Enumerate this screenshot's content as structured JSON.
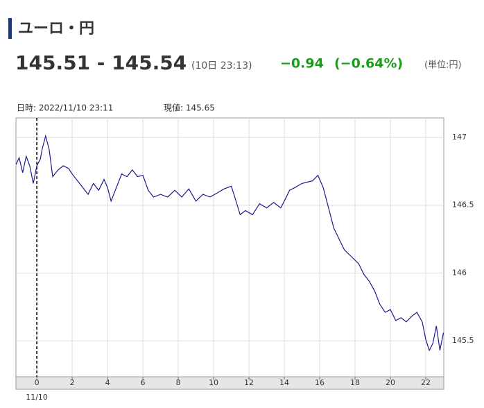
{
  "header": {
    "title": "ユーロ・円",
    "quote": "145.51 - 145.54",
    "timestamp": "(10日 23:13)",
    "change": "−0.94",
    "change_pct": "(−0.64%)",
    "unit": "(単位:円)"
  },
  "chart_data": {
    "type": "line",
    "info_time": "日時: 2022/11/10 23:11",
    "info_price": "現値: 145.65",
    "date_label": "11/10",
    "vline_x": 0,
    "x": [
      -1.18,
      -1.0,
      -0.8,
      -0.6,
      -0.4,
      -0.2,
      0,
      0.2,
      0.3,
      0.5,
      0.7,
      0.9,
      1.2,
      1.5,
      1.8,
      2.0,
      2.3,
      2.6,
      2.9,
      3.2,
      3.5,
      3.8,
      4.0,
      4.2,
      4.5,
      4.8,
      5.1,
      5.4,
      5.7,
      6.0,
      6.3,
      6.6,
      7.0,
      7.4,
      7.8,
      8.2,
      8.6,
      9.0,
      9.4,
      9.8,
      10.2,
      10.6,
      11.0,
      11.2,
      11.5,
      11.8,
      12.2,
      12.6,
      13.0,
      13.4,
      13.8,
      14.0,
      14.3,
      14.6,
      15.0,
      15.3,
      15.6,
      15.9,
      16.2,
      16.5,
      16.8,
      17.1,
      17.4,
      17.8,
      18.2,
      18.5,
      18.8,
      19.1,
      19.4,
      19.7,
      20.0,
      20.3,
      20.6,
      20.9,
      21.2,
      21.5,
      21.8,
      22.0,
      22.2,
      22.4,
      22.6,
      22.8,
      23.0
    ],
    "series": [
      {
        "color": "#1a1a8c",
        "values": [
          146.8,
          146.85,
          146.74,
          146.86,
          146.79,
          146.66,
          146.79,
          146.84,
          146.91,
          147.01,
          146.91,
          146.71,
          146.76,
          146.79,
          146.77,
          146.73,
          146.68,
          146.63,
          146.58,
          146.66,
          146.61,
          146.69,
          146.63,
          146.53,
          146.63,
          146.73,
          146.71,
          146.76,
          146.71,
          146.72,
          146.61,
          146.56,
          146.58,
          146.56,
          146.61,
          146.56,
          146.62,
          146.53,
          146.58,
          146.56,
          146.59,
          146.62,
          146.64,
          146.56,
          146.43,
          146.46,
          146.43,
          146.51,
          146.48,
          146.52,
          146.48,
          146.53,
          146.61,
          146.63,
          146.66,
          146.67,
          146.68,
          146.72,
          146.63,
          146.48,
          146.33,
          146.25,
          146.17,
          146.12,
          146.07,
          145.99,
          145.94,
          145.87,
          145.77,
          145.71,
          145.73,
          145.65,
          145.67,
          145.64,
          145.68,
          145.71,
          145.64,
          145.51,
          145.43,
          145.48,
          145.61,
          145.43,
          145.56
        ]
      }
    ],
    "xlim": [
      -1.18,
      23.02
    ],
    "ylim": [
      145.235,
      147.143
    ],
    "xticks": [
      0,
      2,
      4,
      6,
      8,
      10,
      12,
      14,
      16,
      18,
      20,
      22
    ],
    "yticks": [
      145.5,
      146,
      146.5,
      147
    ],
    "grid": true
  }
}
